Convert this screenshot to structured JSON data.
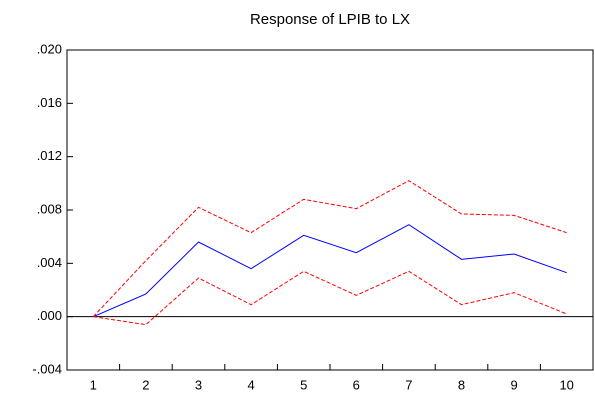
{
  "chart_data": {
    "type": "line",
    "title": "Response of LPIB to LX",
    "categories": [
      "1",
      "2",
      "3",
      "4",
      "5",
      "6",
      "7",
      "8",
      "9",
      "10"
    ],
    "series": [
      {
        "color": "#0000ff",
        "dashed": false,
        "values": [
          0.0,
          0.0017,
          0.0056,
          0.0036,
          0.0061,
          0.0048,
          0.0069,
          0.0043,
          0.0047,
          0.0033
        ]
      },
      {
        "color": "#ff0000",
        "dashed": true,
        "values": [
          0.0,
          0.0042,
          0.0082,
          0.0063,
          0.0088,
          0.0081,
          0.0102,
          0.0077,
          0.0076,
          0.0063
        ]
      },
      {
        "color": "#ff0000",
        "dashed": true,
        "values": [
          0.0,
          -0.0006,
          0.0029,
          0.0009,
          0.0034,
          0.0016,
          0.0034,
          0.0009,
          0.0018,
          0.0002
        ]
      }
    ],
    "ylim": [
      -0.004,
      0.02
    ],
    "yticks": [
      {
        "value": -0.004,
        "label": "-.004"
      },
      {
        "value": 0,
        "label": ".000"
      },
      {
        "value": 0.004,
        "label": ".004"
      },
      {
        "value": 0.008,
        "label": ".008"
      },
      {
        "value": 0.012,
        "label": ".012"
      },
      {
        "value": 0.016,
        "label": ".016"
      },
      {
        "value": 0.02,
        "label": ".020"
      }
    ],
    "zero_line": true
  }
}
